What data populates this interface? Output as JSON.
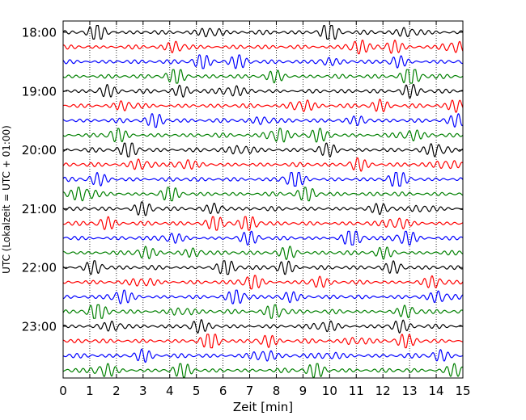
{
  "chart_data": {
    "type": "line",
    "title": "",
    "xlabel": "Zeit  [min]",
    "ylabel": "UTC (Lokalzeit = UTC + 01:00)",
    "xlim": [
      0,
      15
    ],
    "x_ticks": [
      0,
      1,
      2,
      3,
      4,
      5,
      6,
      7,
      8,
      9,
      10,
      11,
      12,
      13,
      14,
      15
    ],
    "x_tick_labels": [
      "0",
      "1",
      "2",
      "3",
      "4",
      "5",
      "6",
      "7",
      "8",
      "9",
      "10",
      "11",
      "12",
      "13",
      "14",
      "15"
    ],
    "y_tick_labels": [
      "18:00",
      "19:00",
      "20:00",
      "21:00",
      "22:00",
      "23:00"
    ],
    "grid": "vertical dotted",
    "trace_interval_min": 15,
    "traces_per_hour": 4,
    "trace_start_times": [
      "18:00",
      "18:15",
      "18:30",
      "18:45",
      "19:00",
      "19:15",
      "19:30",
      "19:45",
      "20:00",
      "20:15",
      "20:30",
      "20:45",
      "21:00",
      "21:15",
      "21:30",
      "21:45",
      "22:00",
      "22:15",
      "22:30",
      "22:45",
      "23:00",
      "23:15",
      "23:30",
      "23:45"
    ],
    "color_cycle": [
      "#000000",
      "#ff0000",
      "#0000ff",
      "#008000"
    ],
    "series": [
      {
        "start": "18:00",
        "color": "#000000",
        "bursts": [
          [
            1.3,
            1.0
          ],
          [
            5.6,
            0.9
          ],
          [
            10.0,
            1.2
          ],
          [
            13.0,
            0.8
          ]
        ]
      },
      {
        "start": "18:15",
        "color": "#ff0000",
        "bursts": [
          [
            4.3,
            0.8
          ],
          [
            11.0,
            1.0
          ],
          [
            12.3,
            0.9
          ],
          [
            14.6,
            1.0
          ]
        ]
      },
      {
        "start": "18:30",
        "color": "#0000ff",
        "bursts": [
          [
            5.2,
            0.9
          ],
          [
            6.6,
            0.7
          ],
          [
            9.8,
            0.6
          ],
          [
            12.5,
            0.7
          ]
        ]
      },
      {
        "start": "18:45",
        "color": "#008000",
        "bursts": [
          [
            4.3,
            1.0
          ],
          [
            8.0,
            0.6
          ],
          [
            13.1,
            1.4
          ]
        ]
      },
      {
        "start": "19:00",
        "color": "#000000",
        "bursts": [
          [
            1.6,
            0.7
          ],
          [
            4.5,
            0.7
          ],
          [
            6.3,
            0.9
          ],
          [
            13.0,
            0.8
          ]
        ]
      },
      {
        "start": "19:15",
        "color": "#ff0000",
        "bursts": [
          [
            2.4,
            0.7
          ],
          [
            8.9,
            1.1
          ],
          [
            11.9,
            0.7
          ],
          [
            14.9,
            1.0
          ]
        ]
      },
      {
        "start": "19:30",
        "color": "#0000ff",
        "bursts": [
          [
            3.5,
            0.9
          ],
          [
            7.6,
            0.7
          ],
          [
            11.2,
            0.6
          ],
          [
            14.9,
            0.8
          ]
        ]
      },
      {
        "start": "19:45",
        "color": "#008000",
        "bursts": [
          [
            2.0,
            0.8
          ],
          [
            8.0,
            1.3
          ],
          [
            9.5,
            0.8
          ],
          [
            13.0,
            0.9
          ]
        ]
      },
      {
        "start": "20:00",
        "color": "#000000",
        "bursts": [
          [
            2.5,
            1.0
          ],
          [
            6.7,
            0.9
          ],
          [
            10.0,
            0.7
          ],
          [
            14.1,
            1.1
          ]
        ]
      },
      {
        "start": "20:15",
        "color": "#ff0000",
        "bursts": [
          [
            3.0,
            0.9
          ],
          [
            4.5,
            0.7
          ],
          [
            11.0,
            0.8
          ],
          [
            14.4,
            0.9
          ]
        ]
      },
      {
        "start": "20:30",
        "color": "#0000ff",
        "bursts": [
          [
            1.3,
            0.7
          ],
          [
            8.6,
            1.2
          ],
          [
            12.5,
            1.0
          ]
        ]
      },
      {
        "start": "20:45",
        "color": "#008000",
        "bursts": [
          [
            0.8,
            1.4
          ],
          [
            4.0,
            0.8
          ],
          [
            9.2,
            0.9
          ]
        ]
      },
      {
        "start": "21:00",
        "color": "#000000",
        "bursts": [
          [
            3.0,
            0.8
          ],
          [
            5.8,
            0.7
          ],
          [
            12.0,
            0.6
          ],
          [
            13.5,
            0.6
          ]
        ]
      },
      {
        "start": "21:15",
        "color": "#ff0000",
        "bursts": [
          [
            1.6,
            0.8
          ],
          [
            5.8,
            1.0
          ],
          [
            7.0,
            0.9
          ],
          [
            12.5,
            1.1
          ]
        ]
      },
      {
        "start": "21:30",
        "color": "#0000ff",
        "bursts": [
          [
            4.0,
            0.7
          ],
          [
            7.0,
            0.7
          ],
          [
            10.9,
            1.1
          ],
          [
            12.8,
            1.2
          ]
        ]
      },
      {
        "start": "21:45",
        "color": "#008000",
        "bursts": [
          [
            3.0,
            0.8
          ],
          [
            5.0,
            0.7
          ],
          [
            8.5,
            0.7
          ],
          [
            12.0,
            0.6
          ]
        ]
      },
      {
        "start": "22:00",
        "color": "#000000",
        "bursts": [
          [
            1.2,
            0.9
          ],
          [
            6.2,
            1.0
          ],
          [
            8.3,
            0.8
          ],
          [
            12.5,
            0.8
          ]
        ]
      },
      {
        "start": "22:15",
        "color": "#ff0000",
        "bursts": [
          [
            3.0,
            0.7
          ],
          [
            7.0,
            1.0
          ],
          [
            9.5,
            0.7
          ],
          [
            14.0,
            0.8
          ]
        ]
      },
      {
        "start": "22:30",
        "color": "#0000ff",
        "bursts": [
          [
            2.1,
            1.0
          ],
          [
            6.6,
            1.0
          ],
          [
            8.4,
            0.7
          ],
          [
            14.2,
            0.9
          ]
        ]
      },
      {
        "start": "22:45",
        "color": "#008000",
        "bursts": [
          [
            1.2,
            1.2
          ],
          [
            4.5,
            0.7
          ],
          [
            8.0,
            1.1
          ],
          [
            13.0,
            0.8
          ]
        ]
      },
      {
        "start": "23:00",
        "color": "#000000",
        "bursts": [
          [
            2.0,
            0.7
          ],
          [
            5.0,
            0.8
          ],
          [
            9.8,
            0.8
          ],
          [
            12.6,
            0.7
          ]
        ]
      },
      {
        "start": "23:15",
        "color": "#ff0000",
        "bursts": [
          [
            5.6,
            1.0
          ],
          [
            7.6,
            0.8
          ],
          [
            11.0,
            0.7
          ],
          [
            12.8,
            0.8
          ]
        ]
      },
      {
        "start": "23:30",
        "color": "#0000ff",
        "bursts": [
          [
            3.0,
            0.7
          ],
          [
            7.5,
            1.1
          ],
          [
            10.0,
            0.6
          ],
          [
            14.1,
            0.7
          ]
        ]
      },
      {
        "start": "23:45",
        "color": "#008000",
        "bursts": [
          [
            1.5,
            1.1
          ],
          [
            4.5,
            0.8
          ],
          [
            9.5,
            0.9
          ],
          [
            14.8,
            0.9
          ]
        ]
      }
    ]
  }
}
